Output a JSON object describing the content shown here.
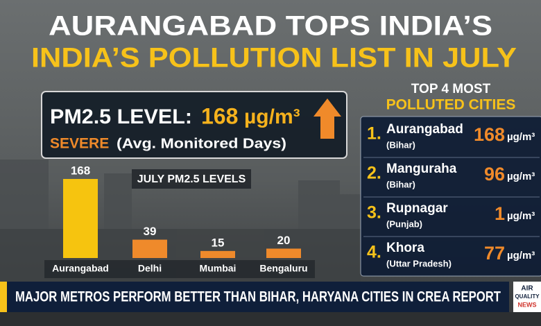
{
  "headline": {
    "line1": "AURANGABAD TOPS INDIA’S",
    "line2": "INDIA’S POLLUTION LIST IN JULY"
  },
  "callout": {
    "label": "PM2.5 LEVEL:",
    "value": 168,
    "unit": "µg/m³",
    "severity": "SEVERE",
    "note": "(Avg. Monitored Days)"
  },
  "chart_data": {
    "type": "bar",
    "title": "JULY PM2.5 LEVELS",
    "categories": [
      "Aurangabad",
      "Delhi",
      "Mumbai",
      "Bengaluru"
    ],
    "values": [
      168,
      39,
      15,
      20
    ],
    "colors": [
      "#f6c40f",
      "#ef8a2b",
      "#ef8a2b",
      "#ef8a2b"
    ]
  },
  "ranking": {
    "title_lines": [
      "TOP 4 MOST",
      "POLLUTED CITIES"
    ],
    "items": [
      {
        "rank": "1.",
        "city": "Aurangabad",
        "state": "(Bihar)",
        "value": 168,
        "unit": "µg/m³"
      },
      {
        "rank": "2.",
        "city": "Manguraha",
        "state": "(Bihar)",
        "value": 96,
        "unit": "µg/m³"
      },
      {
        "rank": "3.",
        "city": "Rupnagar",
        "state": "(Punjab)",
        "value": 1,
        "unit": "µg/m³"
      },
      {
        "rank": "4.",
        "city": "Khora",
        "state": "(Uttar Pradesh)",
        "value": 77,
        "unit": "µg/m³"
      }
    ]
  },
  "ticker": {
    "text": "MAJOR METROS PERFORM BETTER THAN BIHAR, HARYANA CITIES IN CREA REPORT",
    "logo": [
      "AIR",
      "QUALITY",
      "NEWS"
    ]
  }
}
